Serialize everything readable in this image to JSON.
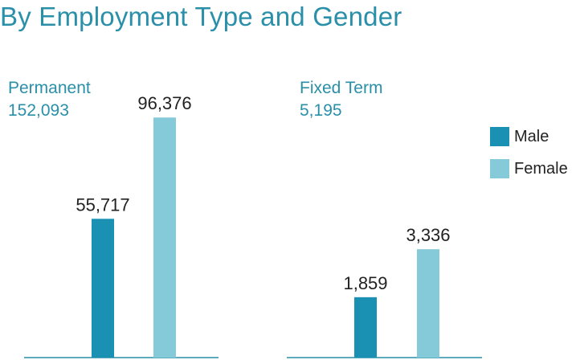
{
  "title": "By Employment Type and Gender",
  "colors": {
    "male": "#1a91b3",
    "female": "#85cad9",
    "axis": "#2a8fa8",
    "title": "#2a8fa8"
  },
  "chart_data": [
    {
      "type": "bar",
      "title": "Permanent",
      "total": "152,093",
      "categories": [
        "Male",
        "Female"
      ],
      "values": [
        55717,
        96376
      ],
      "value_labels": [
        "55,717",
        "96,376"
      ],
      "ylim": [
        0,
        100000
      ]
    },
    {
      "type": "bar",
      "title": "Fixed Term",
      "total": "5,195",
      "categories": [
        "Male",
        "Female"
      ],
      "values": [
        1859,
        3336
      ],
      "value_labels": [
        "1,859",
        "3,336"
      ],
      "ylim": [
        0,
        6000
      ]
    }
  ],
  "legend": {
    "male": "Male",
    "female": "Female"
  }
}
